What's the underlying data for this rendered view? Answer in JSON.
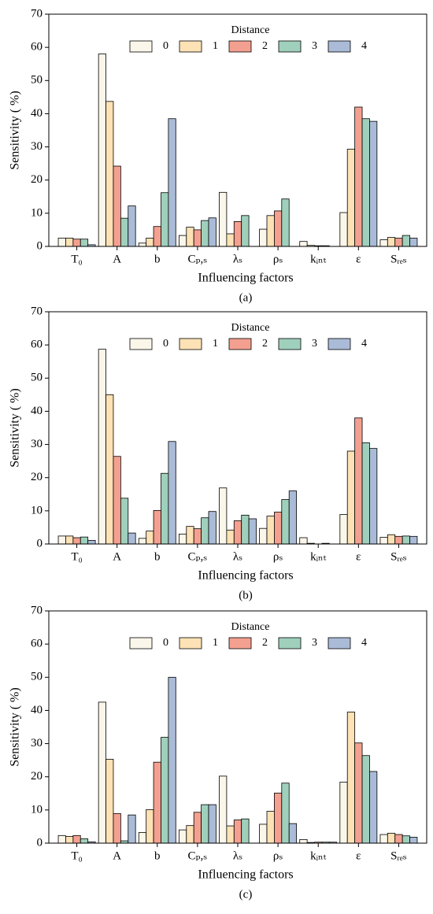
{
  "chart_data": [
    {
      "type": "bar",
      "label": "(a)",
      "xlabel": "Influencing factors",
      "ylabel": "Sensitivity ( %)",
      "legend_title": "Distance",
      "categories": [
        "T₀",
        "A",
        "b",
        "Cₚ,ₛ",
        "λₛ",
        "ρₛ",
        "kᵢₙₜ",
        "ε",
        "Sᵣₑₛ"
      ],
      "ylim": [
        0,
        70
      ],
      "yticks": [
        0,
        10,
        20,
        30,
        40,
        50,
        60,
        70
      ],
      "series": [
        {
          "name": "0",
          "color": "#fbf6ea",
          "values": [
            2.5,
            58,
            1,
            3.3,
            16.3,
            5.2,
            1.5,
            10.2,
            2
          ]
        },
        {
          "name": "1",
          "color": "#fde2b6",
          "values": [
            2.5,
            43.7,
            2.5,
            5.8,
            3.8,
            9.3,
            0.3,
            29.3,
            2.7
          ]
        },
        {
          "name": "2",
          "color": "#f4a090",
          "values": [
            2.2,
            24.2,
            6,
            5,
            7.5,
            10.7,
            0.2,
            42,
            2.5
          ]
        },
        {
          "name": "3",
          "color": "#9fd0bc",
          "values": [
            2.2,
            8.5,
            16.2,
            7.8,
            9.3,
            14.3,
            0.2,
            38.5,
            3.3
          ]
        },
        {
          "name": "4",
          "color": "#a9bbd6",
          "values": [
            0.5,
            12.2,
            38.5,
            8.6,
            0,
            0,
            0,
            37.7,
            2.5
          ]
        }
      ]
    },
    {
      "type": "bar",
      "label": "(b)",
      "xlabel": "Influencing factors",
      "ylabel": "Sensitivity ( %)",
      "legend_title": "Distance",
      "categories": [
        "T₀",
        "A",
        "b",
        "Cₚ,ₛ",
        "λₛ",
        "ρₛ",
        "kᵢₙₜ",
        "ε",
        "Sᵣₑₛ"
      ],
      "ylim": [
        0,
        70
      ],
      "yticks": [
        0,
        10,
        20,
        30,
        40,
        50,
        60,
        70
      ],
      "series": [
        {
          "name": "0",
          "color": "#fbf6ea",
          "values": [
            2.4,
            58.7,
            1.7,
            3,
            16.9,
            4.7,
            1.9,
            8.9,
            2
          ]
        },
        {
          "name": "1",
          "color": "#fde2b6",
          "values": [
            2.4,
            45,
            3.9,
            5.3,
            4.2,
            8.4,
            0.2,
            28,
            2.8
          ]
        },
        {
          "name": "2",
          "color": "#f4a090",
          "values": [
            1.9,
            26.4,
            10.1,
            4.6,
            7,
            9.6,
            0,
            38,
            2.3
          ]
        },
        {
          "name": "3",
          "color": "#9fd0bc",
          "values": [
            2.1,
            13.8,
            21.3,
            7.9,
            8.7,
            13.4,
            0.2,
            30.5,
            2.4
          ]
        },
        {
          "name": "4",
          "color": "#a9bbd6",
          "values": [
            1.1,
            3.3,
            30.9,
            9.8,
            7.6,
            16,
            0,
            28.8,
            2.3
          ]
        }
      ]
    },
    {
      "type": "bar",
      "label": "(c)",
      "xlabel": "Influencing factors",
      "ylabel": "Sensitivity ( %)",
      "legend_title": "Distance",
      "categories": [
        "T₀",
        "A",
        "b",
        "Cₚ,ₛ",
        "λₛ",
        "ρₛ",
        "kᵢₙₜ",
        "ε",
        "Sᵣₑₛ"
      ],
      "ylim": [
        0,
        70
      ],
      "yticks": [
        0,
        10,
        20,
        30,
        40,
        50,
        60,
        70
      ],
      "series": [
        {
          "name": "0",
          "color": "#fbf6ea",
          "values": [
            2.3,
            42.5,
            3.2,
            4,
            20.2,
            5.7,
            1.1,
            18.4,
            2.6
          ]
        },
        {
          "name": "1",
          "color": "#fde2b6",
          "values": [
            2,
            25.3,
            10.1,
            5.3,
            5.2,
            9.6,
            0.2,
            39.5,
            3
          ]
        },
        {
          "name": "2",
          "color": "#f4a090",
          "values": [
            2.3,
            8.9,
            24.4,
            9.3,
            7,
            15.1,
            0.3,
            30.2,
            2.6
          ]
        },
        {
          "name": "3",
          "color": "#9fd0bc",
          "values": [
            1.3,
            0.7,
            31.9,
            11.6,
            7.3,
            18.1,
            0.3,
            26.4,
            2.2
          ]
        },
        {
          "name": "4",
          "color": "#a9bbd6",
          "values": [
            0.4,
            8.5,
            50,
            11.6,
            0,
            5.9,
            0.3,
            21.6,
            1.8
          ]
        }
      ]
    }
  ]
}
